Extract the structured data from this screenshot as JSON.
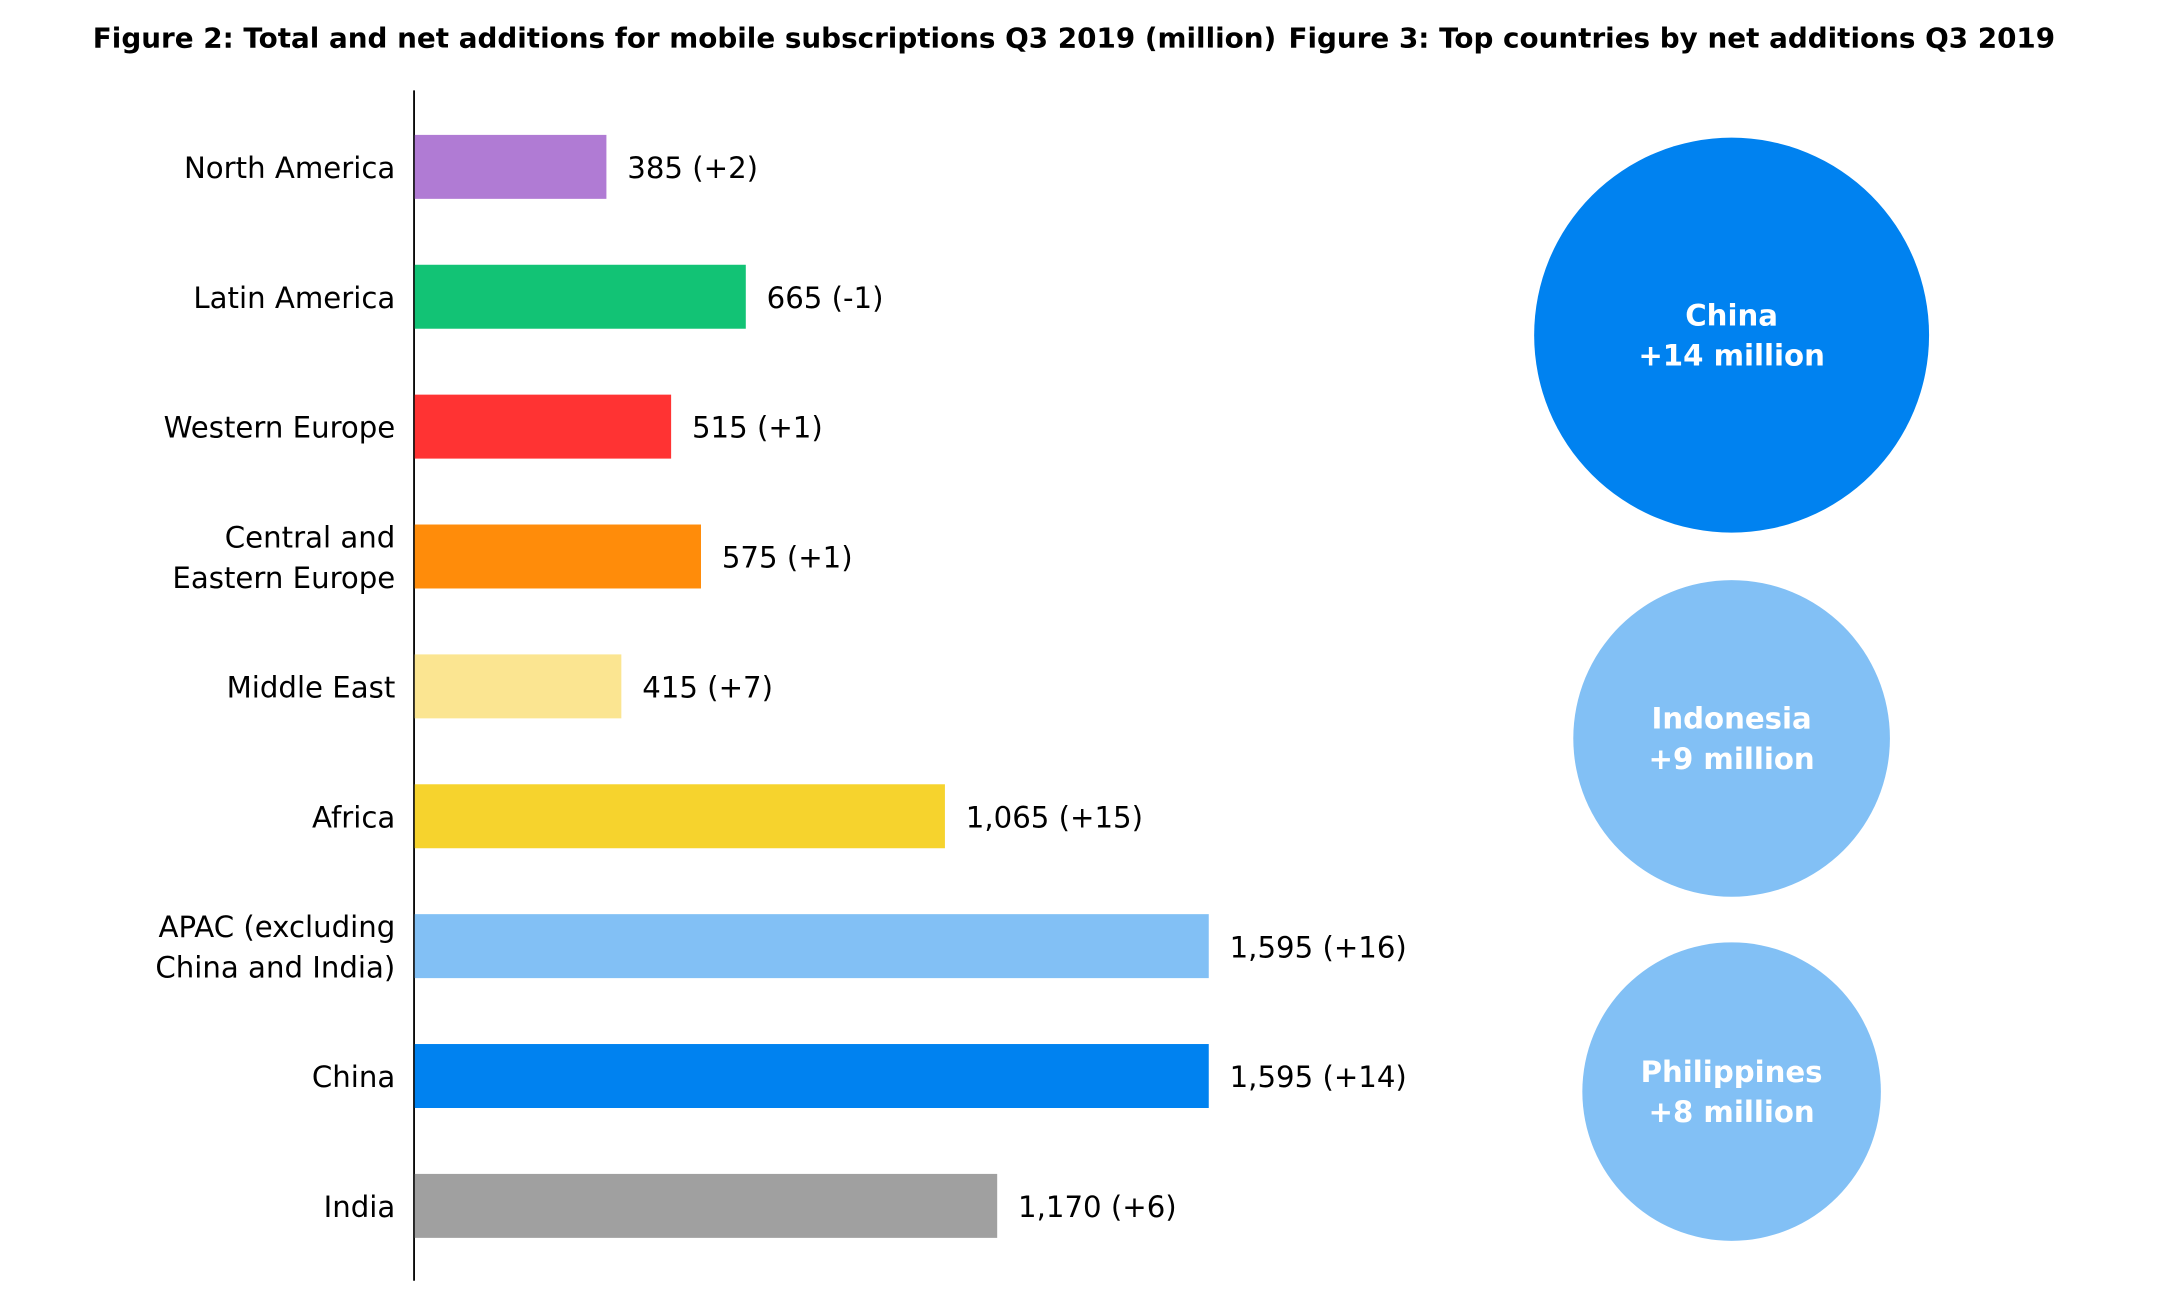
{
  "chart_data": [
    {
      "type": "bar",
      "orientation": "horizontal",
      "title": "Figure 2: Total and net additions for mobile subscriptions Q3 2019 (million)",
      "categories": [
        [
          "North America"
        ],
        [
          "Latin America"
        ],
        [
          "Western Europe"
        ],
        [
          "Central and",
          "Eastern Europe"
        ],
        [
          "Middle East"
        ],
        [
          "Africa"
        ],
        [
          "APAC (excluding",
          "China and India)"
        ],
        [
          "China"
        ],
        [
          "India"
        ]
      ],
      "values": [
        385,
        665,
        515,
        575,
        415,
        1065,
        1595,
        1595,
        1170
      ],
      "net_additions": [
        2,
        -1,
        1,
        1,
        7,
        15,
        16,
        14,
        6
      ],
      "data_labels": [
        "385 (+2)",
        "665 (-1)",
        "515 (+1)",
        "575 (+1)",
        "415 (+7)",
        "1,065 (+15)",
        "1,595 (+16)",
        "1,595 (+14)",
        "1,170 (+6)"
      ],
      "colors": [
        "#b07bd4",
        "#12c375",
        "#ff3333",
        "#ff8c0a",
        "#fbe591",
        "#f6d32d",
        "#82c0f5",
        "#0082f0",
        "#a0a0a0"
      ],
      "xlim": [
        0,
        1595
      ],
      "grid": false,
      "legend": "none"
    },
    {
      "type": "bubble",
      "title": "Figure 3: Top countries by net additions Q3 2019",
      "items": [
        {
          "country": "China",
          "label": "+14 million",
          "value": 14,
          "color": "#0082f0"
        },
        {
          "country": "Indonesia",
          "label": "+9 million",
          "value": 9,
          "color": "#82c0f5"
        },
        {
          "country": "Philippines",
          "label": "+8 million",
          "value": 8,
          "color": "#82c0f5"
        }
      ]
    }
  ]
}
